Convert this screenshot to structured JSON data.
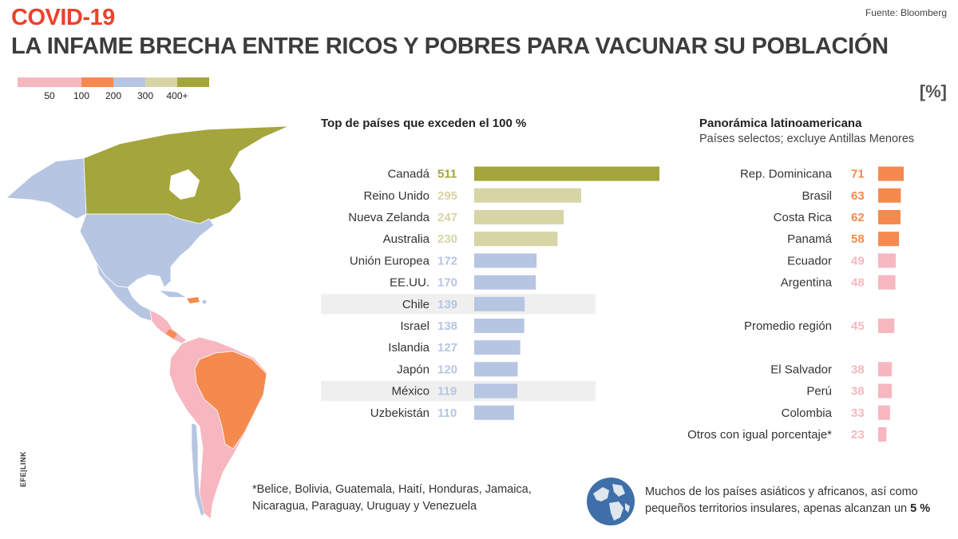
{
  "header": {
    "kicker": "COVID-19",
    "title": "LA INFAME BRECHA ENTRE RICOS Y POBRES PARA VACUNAR SU POBLACIÓN",
    "source": "Fuente: Bloomberg",
    "unit": "[%]"
  },
  "legend": {
    "labels": [
      "50",
      "100",
      "200",
      "300",
      "400+"
    ],
    "colors": [
      "#f7b7c0",
      "#f58a4e",
      "#b6c5e2",
      "#d7d5a6",
      "#a4a53c"
    ]
  },
  "map": {
    "icon": "americas-map",
    "logo": "EFE|LINK"
  },
  "colors": {
    "very_low": "#f7b7c0",
    "low": "#f58a4e",
    "mid": "#b6c5e2",
    "high": "#d7d5a6",
    "top": "#a4a53c",
    "highlight_row": "#efefef"
  },
  "chart_data": [
    {
      "type": "bar",
      "orientation": "horizontal",
      "title": "Top de países que exceden el 100 %",
      "categories": [
        "Canadá",
        "Reino Unido",
        "Nueva Zelanda",
        "Australia",
        "Unión Europea",
        "EE.UU.",
        "Chile",
        "Israel",
        "Islandia",
        "Japón",
        "México",
        "Uzbekistán"
      ],
      "values": [
        511,
        295,
        247,
        230,
        172,
        170,
        139,
        138,
        127,
        120,
        119,
        110
      ],
      "highlighted": [
        "Chile",
        "México"
      ],
      "xlim": [
        0,
        511
      ]
    },
    {
      "type": "bar",
      "orientation": "horizontal",
      "title": "Panorámica latinoamericana",
      "subtitle": "Países selectos; excluye Antillas Menores",
      "categories": [
        "Rep. Dominicana",
        "Brasil",
        "Costa Rica",
        "Panamá",
        "Ecuador",
        "Argentina",
        "Promedio región",
        "El Salvador",
        "Perú",
        "Colombia",
        "Otros con igual porcentaje*"
      ],
      "values": [
        71,
        63,
        62,
        58,
        49,
        48,
        45,
        38,
        38,
        33,
        23
      ],
      "xlim": [
        0,
        71
      ]
    }
  ],
  "footnote": "*Belice, Bolivia, Guatemala, Haití, Honduras, Jamaica, Nicaragua, Paraguay, Uruguay y Venezuela",
  "world_note": {
    "text": "Muchos de los países asiáticos y africanos, así como pequeños territorios insulares, apenas alcanzan un",
    "highlight": "5 %",
    "icon": "globe-icon"
  }
}
